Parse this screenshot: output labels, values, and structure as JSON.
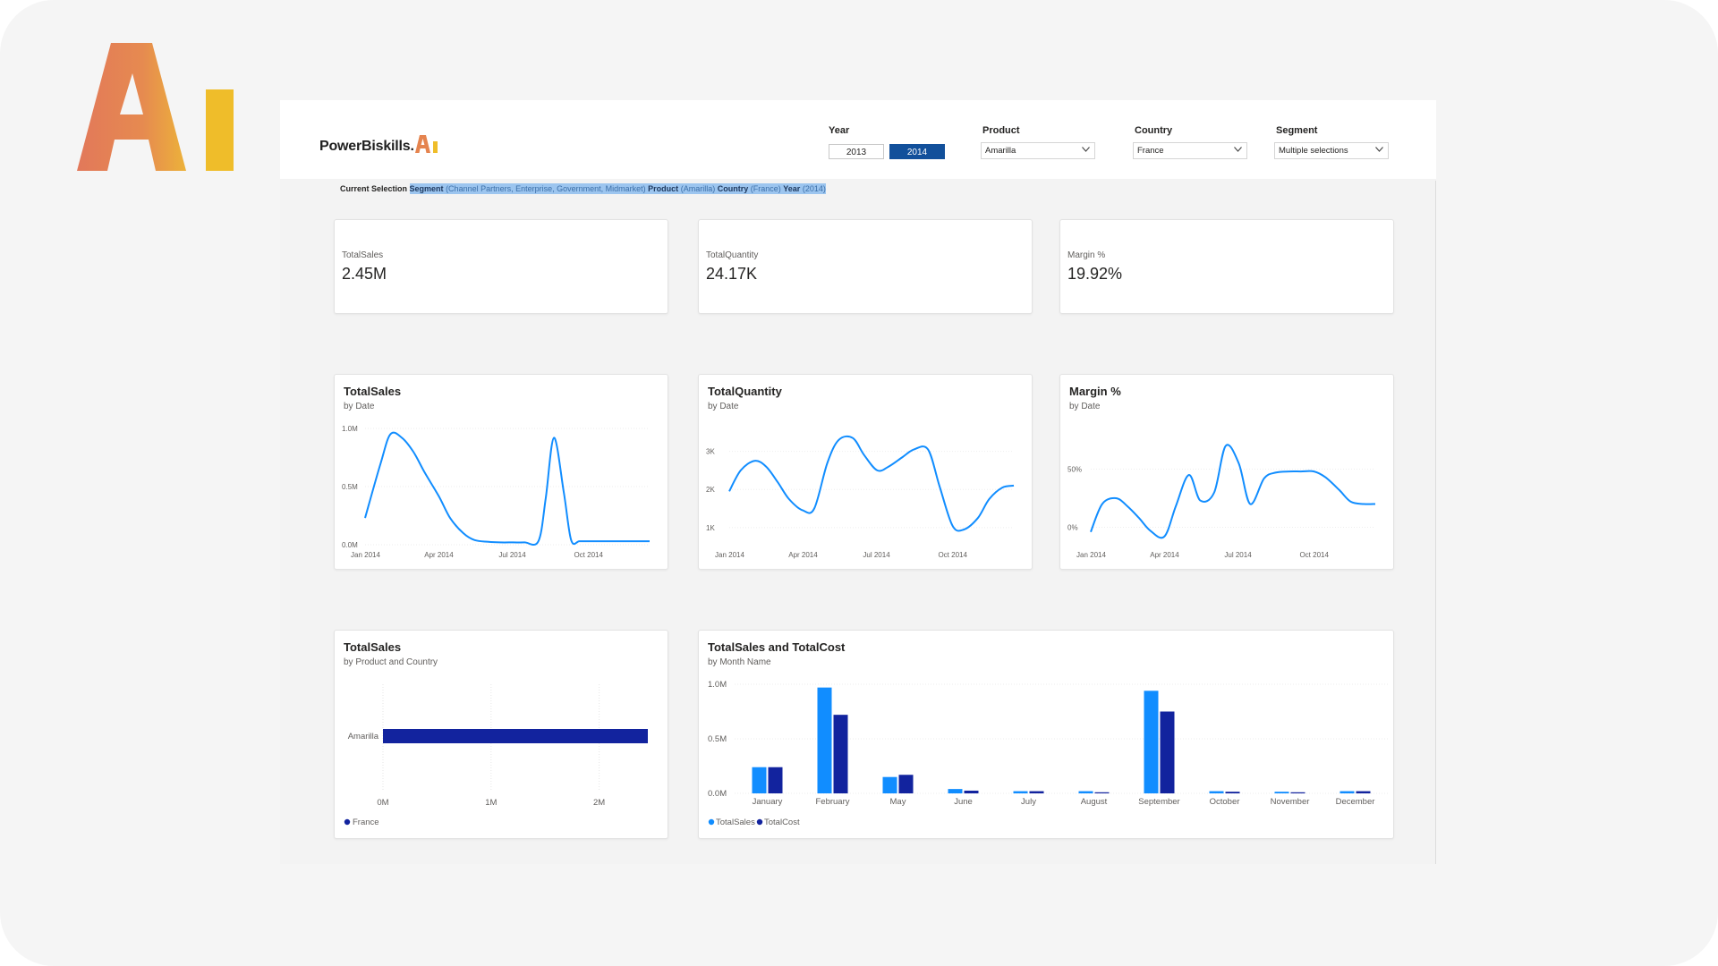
{
  "app": {
    "name": "PowerBiskills."
  },
  "slicers": {
    "year": {
      "label": "Year",
      "options": [
        "2013",
        "2014"
      ],
      "selected": "2014"
    },
    "product": {
      "label": "Product",
      "value": "Amarilla"
    },
    "country": {
      "label": "Country",
      "value": "France"
    },
    "segment": {
      "label": "Segment",
      "value": "Multiple selections"
    }
  },
  "current_selection": {
    "label": "Current Selection",
    "segment_key": "Segment",
    "segment_value": "(Channel Partners, Enterprise, Government, Midmarket)",
    "product_key": "Product",
    "product_value": "(Amarilla)",
    "country_key": "Country",
    "country_value": "(France)",
    "year_key": "Year",
    "year_value": "(2014)"
  },
  "kpis": [
    {
      "label": "TotalSales",
      "value": "2.45M"
    },
    {
      "label": "TotalQuantity",
      "value": "24.17K"
    },
    {
      "label": "Margin %",
      "value": "19.92%"
    }
  ],
  "colors": {
    "line": "#118dff",
    "sales": "#118dff",
    "cost": "#12239e",
    "selected_year": "#12509b"
  },
  "charts": {
    "sales_by_date": {
      "title": "TotalSales",
      "subtitle": "by Date"
    },
    "qty_by_date": {
      "title": "TotalQuantity",
      "subtitle": "by Date"
    },
    "margin_by_date": {
      "title": "Margin %",
      "subtitle": "by Date"
    },
    "sales_by_product": {
      "title": "TotalSales",
      "subtitle": "by Product and Country"
    },
    "sales_cost_by_month": {
      "title": "TotalSales and TotalCost",
      "subtitle": "by Month Name"
    }
  },
  "chart_data": [
    {
      "type": "line",
      "title": "TotalSales",
      "subtitle": "by Date",
      "x": [
        "2014-01-01",
        "2014-01-20",
        "2014-02-01",
        "2014-02-15",
        "2014-03-01",
        "2014-03-15",
        "2014-04-01",
        "2014-04-15",
        "2014-05-01",
        "2014-05-15",
        "2014-06-01",
        "2014-06-15",
        "2014-07-01",
        "2014-07-15",
        "2014-08-01",
        "2014-08-10",
        "2014-08-20",
        "2014-09-01",
        "2014-09-10",
        "2014-09-20",
        "2014-10-01",
        "2014-10-15",
        "2014-11-01",
        "2014-11-15",
        "2014-12-01",
        "2014-12-15"
      ],
      "series": [
        {
          "values": [
            0.23,
            0.7,
            0.95,
            0.92,
            0.8,
            0.62,
            0.42,
            0.23,
            0.1,
            0.04,
            0.025,
            0.02,
            0.02,
            0.02,
            0.03,
            0.4,
            0.92,
            0.45,
            0.04,
            0.03,
            0.03,
            0.03,
            0.03,
            0.03,
            0.03,
            0.03
          ]
        }
      ],
      "xticks": [
        "Jan 2014",
        "Apr 2014",
        "Jul 2014",
        "Oct 2014"
      ],
      "yticks": [
        "0.0M",
        "0.5M",
        "1.0M"
      ],
      "ylim": [
        0,
        1.0
      ]
    },
    {
      "type": "line",
      "title": "TotalQuantity",
      "subtitle": "by Date",
      "x": [
        "2014-01-01",
        "2014-01-15",
        "2014-02-01",
        "2014-02-15",
        "2014-03-01",
        "2014-03-15",
        "2014-04-01",
        "2014-04-15",
        "2014-05-01",
        "2014-05-15",
        "2014-06-01",
        "2014-06-15",
        "2014-07-01",
        "2014-07-15",
        "2014-08-01",
        "2014-08-15",
        "2014-09-01",
        "2014-09-15",
        "2014-10-01",
        "2014-10-15",
        "2014-11-01",
        "2014-11-15",
        "2014-12-01",
        "2014-12-15"
      ],
      "series": [
        {
          "values": [
            1.95,
            2.5,
            2.75,
            2.6,
            2.2,
            1.75,
            1.45,
            1.5,
            2.7,
            3.3,
            3.35,
            2.9,
            2.5,
            2.6,
            2.85,
            3.05,
            3.05,
            2.1,
            1.05,
            0.95,
            1.25,
            1.75,
            2.05,
            2.1
          ]
        }
      ],
      "xticks": [
        "Jan 2014",
        "Apr 2014",
        "Jul 2014",
        "Oct 2014"
      ],
      "yticks": [
        "1K",
        "2K",
        "3K"
      ],
      "ylim": [
        0.55,
        3.6
      ]
    },
    {
      "type": "line",
      "title": "Margin %",
      "subtitle": "by Date",
      "x": [
        "2014-01-01",
        "2014-01-15",
        "2014-02-01",
        "2014-02-15",
        "2014-03-01",
        "2014-03-15",
        "2014-04-01",
        "2014-04-15",
        "2014-05-01",
        "2014-05-15",
        "2014-06-01",
        "2014-06-15",
        "2014-07-01",
        "2014-07-15",
        "2014-08-01",
        "2014-08-15",
        "2014-09-01",
        "2014-09-15",
        "2014-10-01",
        "2014-10-15",
        "2014-11-01",
        "2014-11-15",
        "2014-12-01",
        "2014-12-15"
      ],
      "series": [
        {
          "values": [
            -4,
            20,
            25,
            18,
            8,
            -3,
            -8,
            18,
            45,
            23,
            30,
            70,
            55,
            20,
            42,
            47,
            48,
            48,
            48,
            43,
            32,
            22,
            20,
            20
          ]
        }
      ],
      "xticks": [
        "Jan 2014",
        "Apr 2014",
        "Jul 2014",
        "Oct 2014"
      ],
      "yticks": [
        "0%",
        "50%"
      ],
      "ylim": [
        -15,
        85
      ]
    },
    {
      "type": "bar",
      "orientation": "horizontal",
      "title": "TotalSales",
      "subtitle": "by Product and Country",
      "categories": [
        "Amarilla"
      ],
      "series": [
        {
          "name": "France",
          "values": [
            2.45
          ]
        }
      ],
      "xticks": [
        "0M",
        "1M",
        "2M"
      ],
      "xlim": [
        0,
        2.45
      ]
    },
    {
      "type": "bar",
      "title": "TotalSales and TotalCost",
      "subtitle": "by Month Name",
      "categories": [
        "January",
        "February",
        "May",
        "June",
        "July",
        "August",
        "September",
        "October",
        "November",
        "December"
      ],
      "series": [
        {
          "name": "TotalSales",
          "values": [
            0.24,
            0.97,
            0.15,
            0.04,
            0.02,
            0.02,
            0.94,
            0.02,
            0.015,
            0.02
          ]
        },
        {
          "name": "TotalCost",
          "values": [
            0.24,
            0.72,
            0.17,
            0.025,
            0.02,
            0.01,
            0.75,
            0.015,
            0.01,
            0.02
          ]
        }
      ],
      "yticks": [
        "0.0M",
        "0.5M",
        "1.0M"
      ],
      "ylim": [
        0,
        1.0
      ]
    }
  ]
}
